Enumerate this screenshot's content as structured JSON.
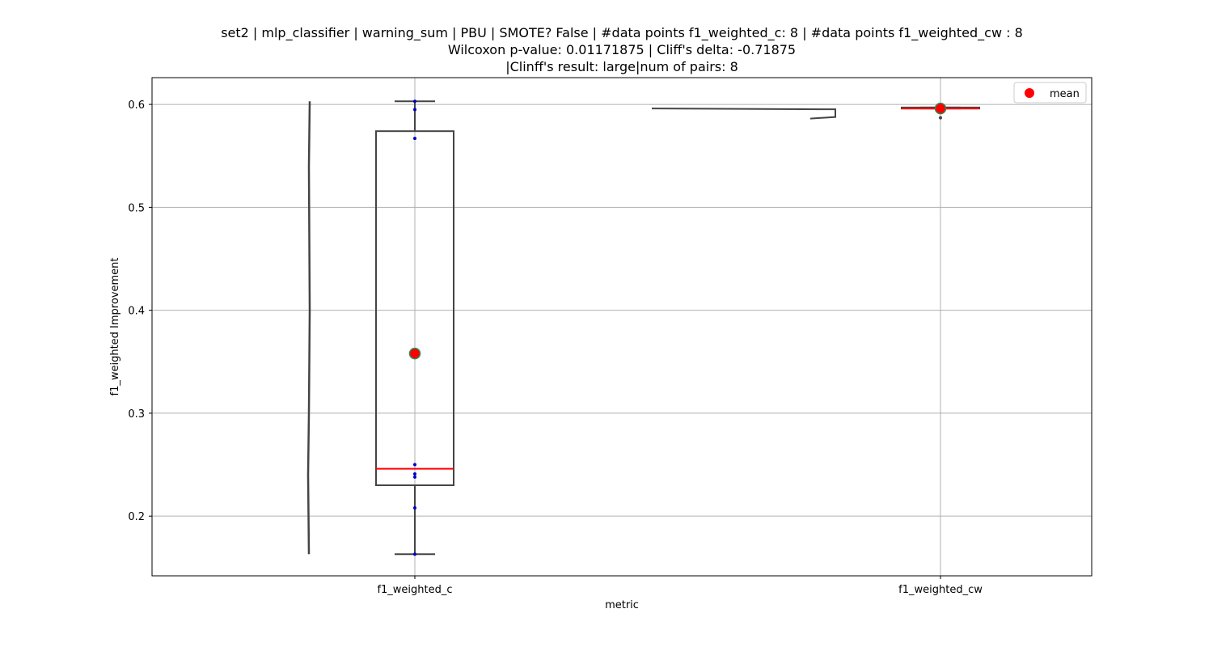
{
  "chart_data": {
    "type": "box",
    "title_lines": [
      "set2 | mlp_classifier | warning_sum | PBU | SMOTE? False | #data points f1_weighted_c: 8 | #data points f1_weighted_cw : 8",
      "Wilcoxon p-value: 0.01171875 | Cliff's delta: -0.71875",
      "|Clinff's result: large|num of pairs: 8"
    ],
    "xlabel": "metric",
    "ylabel": "f1_weighted Improvement",
    "categories": [
      "f1_weighted_c",
      "f1_weighted_cw"
    ],
    "ylim": [
      0.142,
      0.626
    ],
    "yticks": [
      0.2,
      0.3,
      0.4,
      0.5,
      0.6
    ],
    "ytick_labels": [
      "0.2",
      "0.3",
      "0.4",
      "0.5",
      "0.6"
    ],
    "grid": true,
    "legend": {
      "position": "top-right",
      "entries": [
        {
          "label": "mean",
          "color": "#ff0000"
        }
      ]
    },
    "boxes": [
      {
        "category": "f1_weighted_c",
        "q1": 0.23,
        "median": 0.246,
        "q3": 0.574,
        "whisker_low": 0.163,
        "whisker_high": 0.603,
        "mean": 0.358
      },
      {
        "category": "f1_weighted_cw",
        "q1": 0.596,
        "median": 0.596,
        "q3": 0.597,
        "whisker_low": 0.596,
        "whisker_high": 0.597,
        "mean": 0.596
      }
    ],
    "points": [
      {
        "category": "f1_weighted_c",
        "values": [
          0.163,
          0.208,
          0.238,
          0.241,
          0.25,
          0.567,
          0.595,
          0.603
        ]
      },
      {
        "category": "f1_weighted_cw",
        "values": [
          0.587,
          0.596,
          0.596,
          0.596,
          0.597,
          0.597,
          0.597,
          0.597
        ]
      }
    ],
    "colors": {
      "box_edge": "#444444",
      "median": "#ff0000",
      "mean_fill": "#ff0000",
      "mean_edge": "#2e8b57",
      "points": "#0000cc",
      "grid": "#b0b0b0"
    }
  }
}
